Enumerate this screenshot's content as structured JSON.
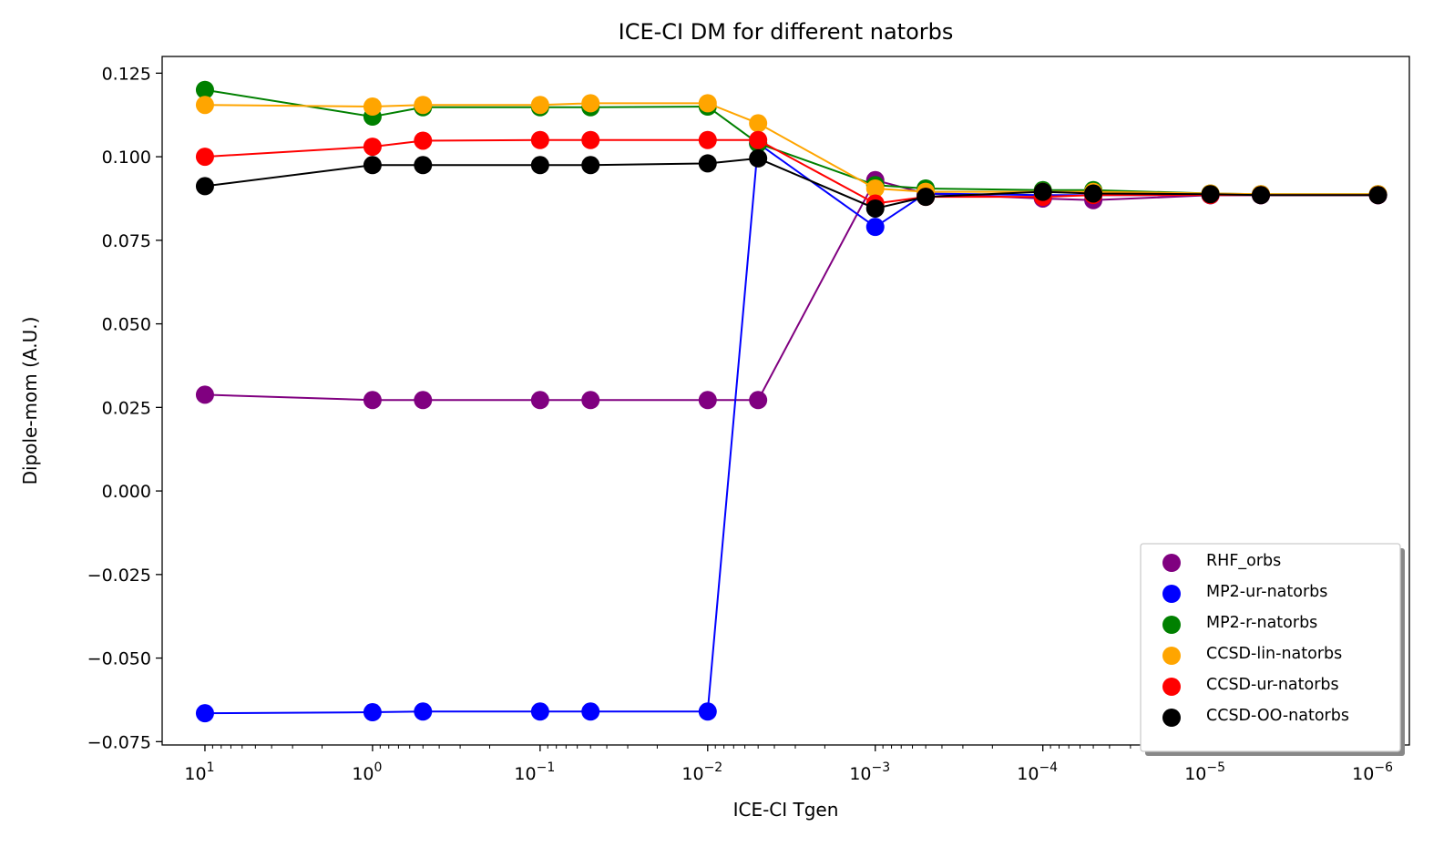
{
  "chart_data": {
    "type": "line",
    "title": "ICE-CI DM for different natorbs",
    "xlabel": "ICE-CI Tgen",
    "ylabel": "Dipole-mom (A.U.)",
    "x_scale": "log",
    "x_reversed": true,
    "xlim": [
      18,
      6.5e-07
    ],
    "ylim": [
      -0.076,
      0.13
    ],
    "x_ticks": [
      {
        "value": 10,
        "base": "10",
        "exp": "1"
      },
      {
        "value": 1,
        "base": "10",
        "exp": "0"
      },
      {
        "value": 0.1,
        "base": "10",
        "exp": "−1"
      },
      {
        "value": 0.01,
        "base": "10",
        "exp": "−2"
      },
      {
        "value": 0.001,
        "base": "10",
        "exp": "−3"
      },
      {
        "value": 0.0001,
        "base": "10",
        "exp": "−4"
      },
      {
        "value": 1e-05,
        "base": "10",
        "exp": "−5"
      },
      {
        "value": 1e-06,
        "base": "10",
        "exp": "−6"
      }
    ],
    "y_ticks": [
      {
        "value": 0.125,
        "label": "0.125"
      },
      {
        "value": 0.1,
        "label": "0.100"
      },
      {
        "value": 0.075,
        "label": "0.075"
      },
      {
        "value": 0.05,
        "label": "0.050"
      },
      {
        "value": 0.025,
        "label": "0.025"
      },
      {
        "value": 0.0,
        "label": "0.000"
      },
      {
        "value": -0.025,
        "label": "−0.025"
      },
      {
        "value": -0.05,
        "label": "−0.050"
      },
      {
        "value": -0.075,
        "label": "−0.075"
      }
    ],
    "x": [
      10,
      1,
      0.5,
      0.1,
      0.05,
      0.01,
      0.005,
      0.001,
      0.0005,
      0.0001,
      5e-05,
      1e-05,
      5e-06,
      1e-06
    ],
    "series": [
      {
        "name": "RHF_orbs",
        "color": "#800080",
        "values": [
          0.0288,
          0.0272,
          0.0272,
          0.0272,
          0.0272,
          0.0272,
          0.0272,
          0.093,
          0.089,
          0.0875,
          0.087,
          0.0885,
          0.0885,
          0.0885
        ]
      },
      {
        "name": "MP2-ur-natorbs",
        "color": "#0000ff",
        "values": [
          -0.0665,
          -0.0662,
          -0.066,
          -0.066,
          -0.066,
          -0.066,
          0.104,
          0.079,
          0.089,
          0.0885,
          0.0885,
          0.0885,
          0.0885,
          0.0885
        ]
      },
      {
        "name": "MP2-r-natorbs",
        "color": "#008000",
        "values": [
          0.12,
          0.112,
          0.1148,
          0.1148,
          0.1148,
          0.115,
          0.104,
          0.0915,
          0.0905,
          0.09,
          0.09,
          0.089,
          0.0888,
          0.0888
        ]
      },
      {
        "name": "CCSD-lin-natorbs",
        "color": "#ffa500",
        "values": [
          0.1155,
          0.115,
          0.1155,
          0.1155,
          0.116,
          0.116,
          0.11,
          0.0905,
          0.0895,
          0.0895,
          0.0895,
          0.089,
          0.0888,
          0.0888
        ]
      },
      {
        "name": "CCSD-ur-natorbs",
        "color": "#ff0000",
        "values": [
          0.1,
          0.103,
          0.1048,
          0.105,
          0.105,
          0.105,
          0.105,
          0.086,
          0.088,
          0.088,
          0.0885,
          0.0885,
          0.0885,
          0.0885
        ]
      },
      {
        "name": "CCSD-OO-natorbs",
        "color": "#000000",
        "values": [
          0.0912,
          0.0975,
          0.0975,
          0.0975,
          0.0975,
          0.098,
          0.0995,
          0.0845,
          0.088,
          0.0895,
          0.089,
          0.0888,
          0.0885,
          0.0885
        ]
      }
    ],
    "legend": {
      "position": "lower-right",
      "shadow": true
    },
    "grid": false
  }
}
